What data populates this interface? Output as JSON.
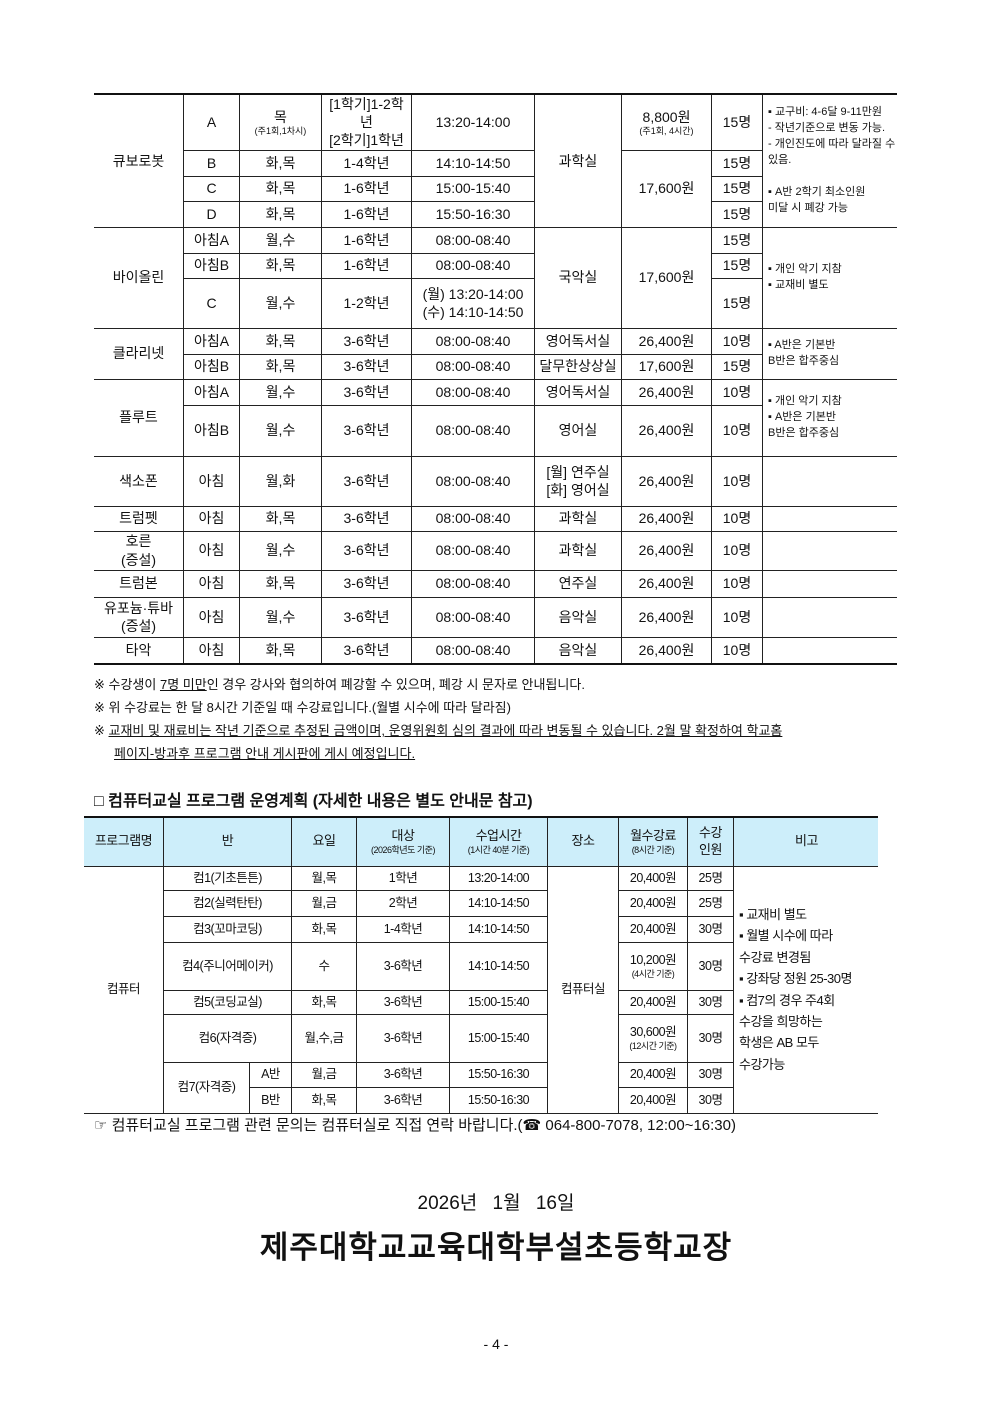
{
  "music_table": {
    "rows": [
      [
        "큐보로봇",
        "A",
        {
          "main": "목",
          "sub": "(주1회,1차시)"
        },
        "[1학기]1-2학년\n[2학기]1학년",
        "13:20-14:00",
        "과학실",
        {
          "main": "8,800원",
          "sub": "(주1회, 4시간)"
        },
        "15명",
        "▪ 교구비: 4-6달 9-11만원\n- 작년기준으로 변동 가능.\n- 개인진도에 따라 달라질 수\n  있음.\n\n▪ A반 2학기 최소인원\n미달 시 폐강 가능"
      ],
      [
        "B",
        "화,목",
        "1-4학년",
        "14:10-14:50",
        "17,600원",
        "15명"
      ],
      [
        "C",
        "화,목",
        "1-6학년",
        "15:00-15:40",
        "15명"
      ],
      [
        "D",
        "화,목",
        "1-6학년",
        "15:50-16:30",
        "15명"
      ],
      [
        "바이올린",
        "아침A",
        "월,수",
        "1-6학년",
        "08:00-08:40",
        "국악실",
        "17,600원",
        "15명",
        "▪ 개인 악기 지참\n▪ 교재비 별도"
      ],
      [
        "아침B",
        "화,목",
        "1-6학년",
        "08:00-08:40",
        "15명"
      ],
      [
        "C",
        "월,수",
        "1-2학년",
        "(월) 13:20-14:00\n(수) 14:10-14:50",
        "15명"
      ],
      [
        "클라리넷",
        "아침A",
        "화,목",
        "3-6학년",
        "08:00-08:40",
        "영어독서실",
        "26,400원",
        "10명",
        "▪ A반은 기본반\n   B반은 합주중심"
      ],
      [
        "아침B",
        "화,목",
        "3-6학년",
        "08:00-08:40",
        "달무한상상실",
        "17,600원",
        "15명"
      ],
      [
        "플루트",
        "아침A",
        "월,수",
        "3-6학년",
        "08:00-08:40",
        "영어독서실",
        "26,400원",
        "10명",
        "▪ 개인 악기 지참\n▪ A반은 기본반\n   B반은 합주중심"
      ],
      [
        "아침B",
        "월,수",
        "3-6학년",
        "08:00-08:40",
        "영어실",
        "26,400원",
        "10명"
      ],
      [
        "색소폰",
        "아침",
        "월,화",
        "3-6학년",
        "08:00-08:40",
        "[월] 연주실\n[화] 영어실",
        "26,400원",
        "10명",
        ""
      ],
      [
        "트럼펫",
        "아침",
        "화,목",
        "3-6학년",
        "08:00-08:40",
        "과학실",
        "26,400원",
        "10명",
        ""
      ],
      [
        "호른\n(증설)",
        "아침",
        "월,수",
        "3-6학년",
        "08:00-08:40",
        "과학실",
        "26,400원",
        "10명",
        ""
      ],
      [
        "트럼본",
        "아침",
        "화,목",
        "3-6학년",
        "08:00-08:40",
        "연주실",
        "26,400원",
        "10명",
        ""
      ],
      [
        "유포늄·튜바\n(증설)",
        "아침",
        "월,수",
        "3-6학년",
        "08:00-08:40",
        "음악실",
        "26,400원",
        "10명",
        ""
      ],
      [
        "타악",
        "아침",
        "화,목",
        "3-6학년",
        "08:00-08:40",
        "음악실",
        "26,400원",
        "10명",
        ""
      ]
    ]
  },
  "notes": {
    "n1_pre": "※ 수강생이 ",
    "n1_u": "7명 미만",
    "n1_post": "인 경우 강사와 협의하여 폐강할 수 있으며, 폐강 시 문자로 안내됩니다.",
    "n2": "※ 위 수강료는 한 달 8시간 기준일 때 수강료입니다.(월별 시수에 따라 달라짐)",
    "n3_pre": "※ ",
    "n3_u": "교재비 및 재료비는 작년 기준으로 추정된 금액이며, 운영위원회 심의 결과에 따라 변동될 수 있습니다. 2월 말 확정하여 학교홈",
    "n3_u2": "페이지-방과후 프로그램 안내 게시판에 게시 예정입니다."
  },
  "section_title": "□ 컴퓨터교실 프로그램 운영계획 (자세한 내용은 별도 안내문 참고)",
  "computer_table": {
    "header": [
      "프로그램명",
      "반",
      "요일",
      {
        "main": "대상",
        "sub": "(2026학년도 기준)"
      },
      {
        "main": "수업시간",
        "sub": "(1시간 40분 기준)"
      },
      "장소",
      {
        "main": "월수강료",
        "sub": "(8시간 기준)"
      },
      "수강\n인원",
      "비고"
    ],
    "rows": [
      [
        "컴퓨터",
        "컴1(기초튼튼)",
        "월,목",
        "1학년",
        "13:20-14:00",
        "컴퓨터실",
        "20,400원",
        "25명",
        "▪ 교재비 별도\n▪ 월별 시수에 따라\n   수강료 변경됨\n▪ 강좌당 정원 25-30명\n▪ 컴7의 경우 주4회\n   수강을 희망하는\n   학생은 AB 모두\n   수강가능"
      ],
      [
        "컴2(실력탄탄)",
        "월,금",
        "2학년",
        "14:10-14:50",
        "20,400원",
        "25명"
      ],
      [
        "컴3(꼬마코딩)",
        "화,목",
        "1-4학년",
        "14:10-14:50",
        "20,400원",
        "30명"
      ],
      [
        "컴4(주니어메이커)",
        "수",
        "3-6학년",
        "14:10-14:50",
        {
          "main": "10,200원",
          "sub": "(4시간 기준)"
        },
        "30명"
      ],
      [
        "컴5(코딩교실)",
        "화,목",
        "3-6학년",
        "15:00-15:40",
        "20,400원",
        "30명"
      ],
      [
        "컴6(자격증)",
        "월,수,금",
        "3-6학년",
        "15:00-15:40",
        {
          "main": "30,600원",
          "sub": "(12시간 기준)"
        },
        "30명"
      ],
      [
        "컴7(자격증)",
        "A반",
        "월,금",
        "3-6학년",
        "15:50-16:30",
        "20,400원",
        "30명"
      ],
      [
        "B반",
        "화,목",
        "3-6학년",
        "15:50-16:30",
        "20,400원",
        "30명"
      ]
    ]
  },
  "contact": "☞ 컴퓨터교실 프로그램 관련 문의는 컴퓨터실로 직접 연락 바랍니다.(☎ 064-800-7078, 12:00~16:30)",
  "date": "2026년 1월 16일",
  "school": "제주대학교교육대학부설초등학교장",
  "page_number": "- 4 -",
  "colors": {
    "header_bg": "#cdeefa"
  }
}
